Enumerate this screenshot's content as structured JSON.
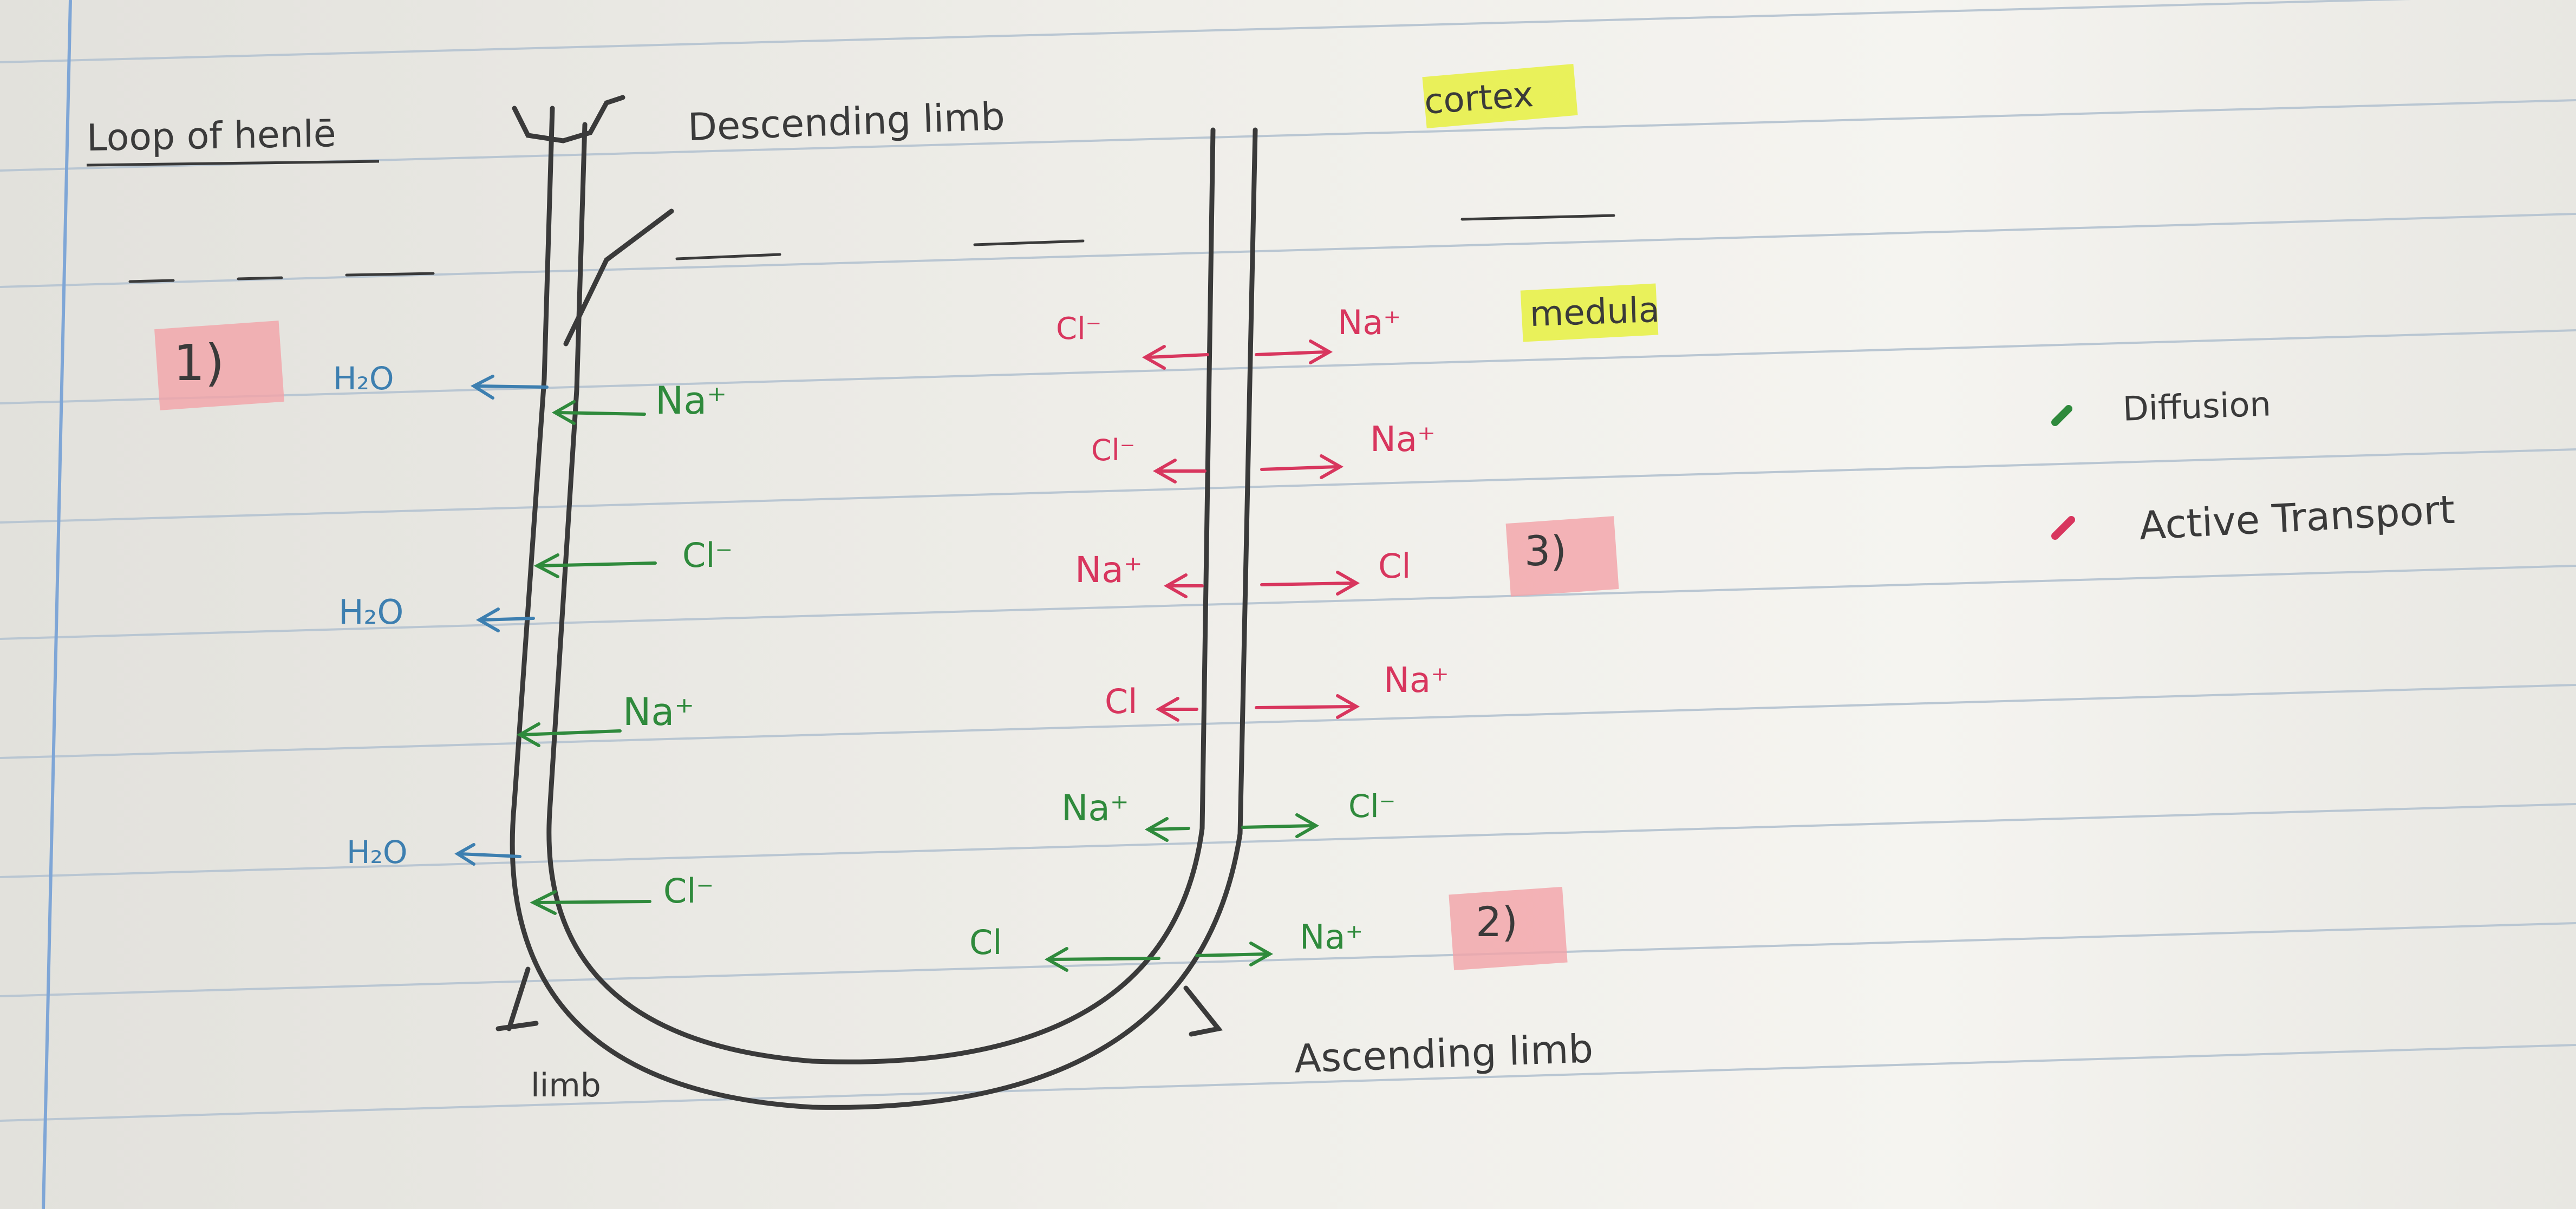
{
  "title": "Loop of henlē",
  "labels": {
    "descending_limb": "Descending limb",
    "ascending_limb": "Ascending limb",
    "limb": "limb",
    "cortex": "cortex",
    "medulla": "medula",
    "step_1": "1)",
    "step_2": "2)",
    "step_3": "3)"
  },
  "legend": [
    {
      "label": "Diffusion",
      "color": "#2f8a3c"
    },
    {
      "label": "Active Transport",
      "color": "#d8365e"
    }
  ],
  "descending_left": [
    {
      "ion": "H₂O"
    },
    {
      "ion": "H₂O"
    },
    {
      "ion": "H₂O"
    }
  ],
  "descending_in": [
    {
      "ion": "Na⁺"
    },
    {
      "ion": "Cl⁻"
    },
    {
      "ion": "Na⁺"
    },
    {
      "ion": "Cl⁻"
    }
  ],
  "ascending": [
    {
      "left": "Cl⁻",
      "right": "Na⁺"
    },
    {
      "left": "Cl⁻",
      "right": "Na⁺"
    },
    {
      "left": "Na⁺",
      "right": "Cl"
    },
    {
      "left": "Cl",
      "right": "Na⁺"
    },
    {
      "left": "Na⁺",
      "right": "Cl⁻"
    },
    {
      "left": "Cl",
      "right": "Na⁺"
    }
  ],
  "colors": {
    "diffusion": "#2f8a3c",
    "active": "#d8365e",
    "water": "#3d7fb0",
    "ink": "#3a3a3a",
    "highlight_yellow": "#e6f02a",
    "highlight_pink": "#f2a3a8",
    "rule_line": "#b9c6d2",
    "margin_line": "#7fa6d6"
  }
}
